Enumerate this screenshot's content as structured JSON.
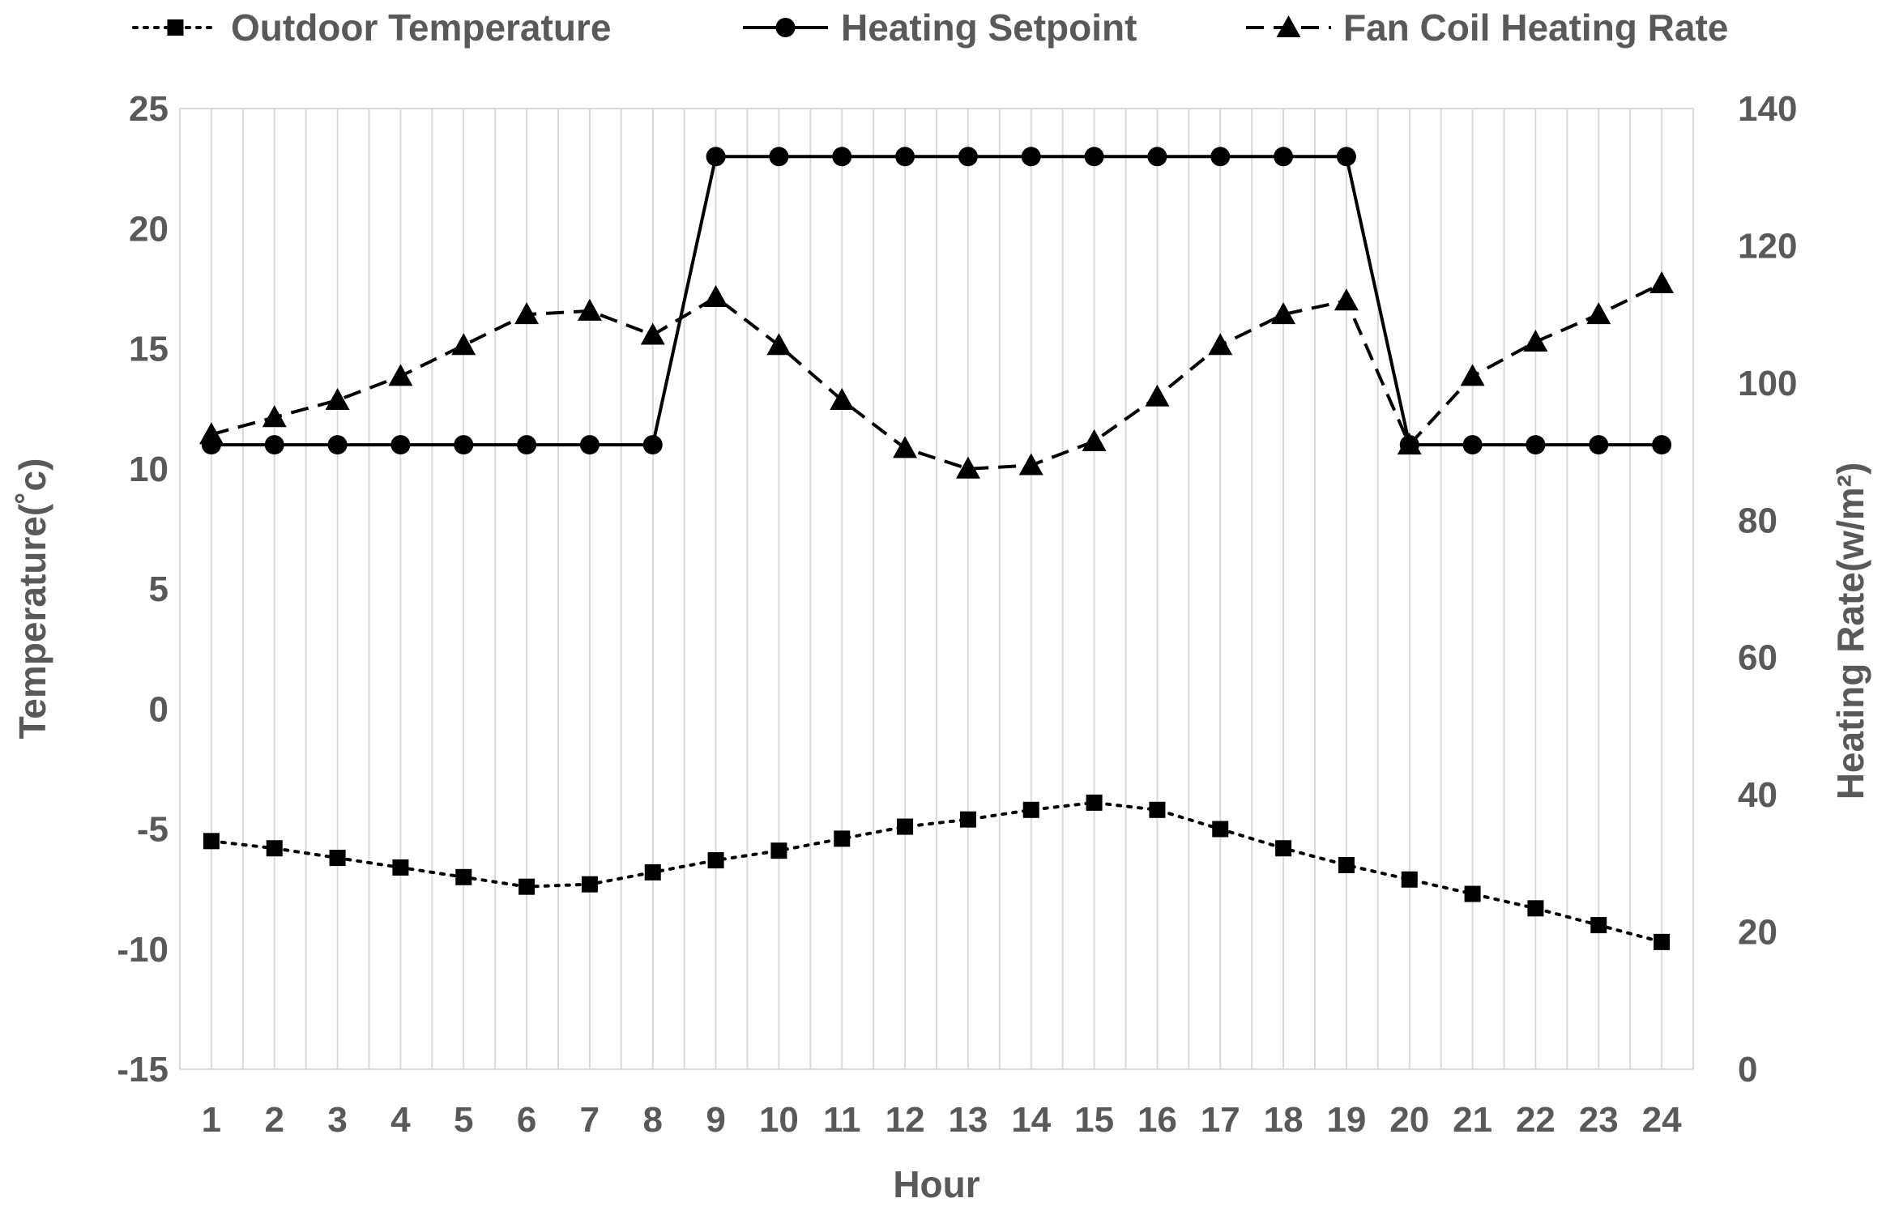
{
  "chart_data": {
    "type": "line",
    "x": [
      1,
      2,
      3,
      4,
      5,
      6,
      7,
      8,
      9,
      10,
      11,
      12,
      13,
      14,
      15,
      16,
      17,
      18,
      19,
      20,
      21,
      22,
      23,
      24
    ],
    "xlabel": "Hour",
    "ylabel": "Temperature(˚c)",
    "ylabel_right": "Heating Rate(w/m²)",
    "ylim": [
      -15,
      25
    ],
    "yticks": [
      -15,
      -10,
      -5,
      0,
      5,
      10,
      15,
      20,
      25
    ],
    "ylim_right": [
      0,
      140
    ],
    "yticks_right": [
      0,
      20,
      40,
      60,
      80,
      100,
      120,
      140
    ],
    "grid": "vertical",
    "legend_position": "top",
    "series": [
      {
        "name": "Outdoor Temperature",
        "axis": "left",
        "line_style": "dotted",
        "marker": "square",
        "values": [
          -5.5,
          -5.8,
          -6.2,
          -6.6,
          -7.0,
          -7.4,
          -7.3,
          -6.8,
          -6.3,
          -5.9,
          -5.4,
          -4.9,
          -4.6,
          -4.2,
          -3.9,
          -4.2,
          -5.0,
          -5.8,
          -6.5,
          -7.1,
          -7.7,
          -8.3,
          -9.0,
          -9.7
        ]
      },
      {
        "name": "Heating Setpoint",
        "axis": "left",
        "line_style": "solid",
        "marker": "circle",
        "values": [
          11,
          11,
          11,
          11,
          11,
          11,
          11,
          11,
          23,
          23,
          23,
          23,
          23,
          23,
          23,
          23,
          23,
          23,
          23,
          11,
          11,
          11,
          11,
          11
        ]
      },
      {
        "name": "Fan Coil Heating Rate",
        "axis": "right",
        "line_style": "dashed",
        "marker": "triangle",
        "values": [
          92.5,
          95,
          97.5,
          101,
          105.5,
          110,
          110.5,
          107,
          112.5,
          105.5,
          97.5,
          90.5,
          87.5,
          88,
          91.5,
          98,
          105.5,
          110,
          112,
          91,
          101,
          106,
          110,
          114.5
        ]
      }
    ]
  },
  "style": {
    "line_color": "#000000",
    "grid_color": "#d9d9d9",
    "text_color": "#595959"
  }
}
